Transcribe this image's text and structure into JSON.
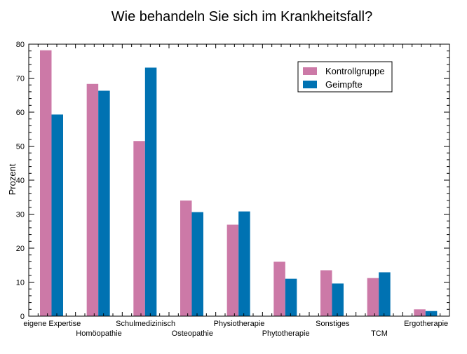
{
  "chart_data": {
    "type": "bar",
    "title": "Wie behandeln Sie sich im Krankheitsfall?",
    "xlabel": "",
    "ylabel": "Prozent",
    "ylim": [
      0,
      80
    ],
    "yticks": [
      0,
      10,
      20,
      30,
      40,
      50,
      60,
      70,
      80
    ],
    "categories": [
      "eigene Expertise",
      "Homöopathie",
      "Schulmedizinisch",
      "Osteopathie",
      "Physiotherapie",
      "Phytotherapie",
      "Sonstiges",
      "TCM",
      "Ergotherapie"
    ],
    "series": [
      {
        "name": "Kontrollgruppe",
        "color": "#cc79a7",
        "values": [
          78.2,
          68.3,
          51.5,
          34.0,
          26.9,
          16.0,
          13.5,
          11.2,
          2.0
        ]
      },
      {
        "name": "Geimpfte",
        "color": "#0072b2",
        "values": [
          59.3,
          66.3,
          73.1,
          30.6,
          30.8,
          11.0,
          9.6,
          12.9,
          1.5
        ]
      }
    ],
    "legend_position": "top-right",
    "grid": false
  }
}
